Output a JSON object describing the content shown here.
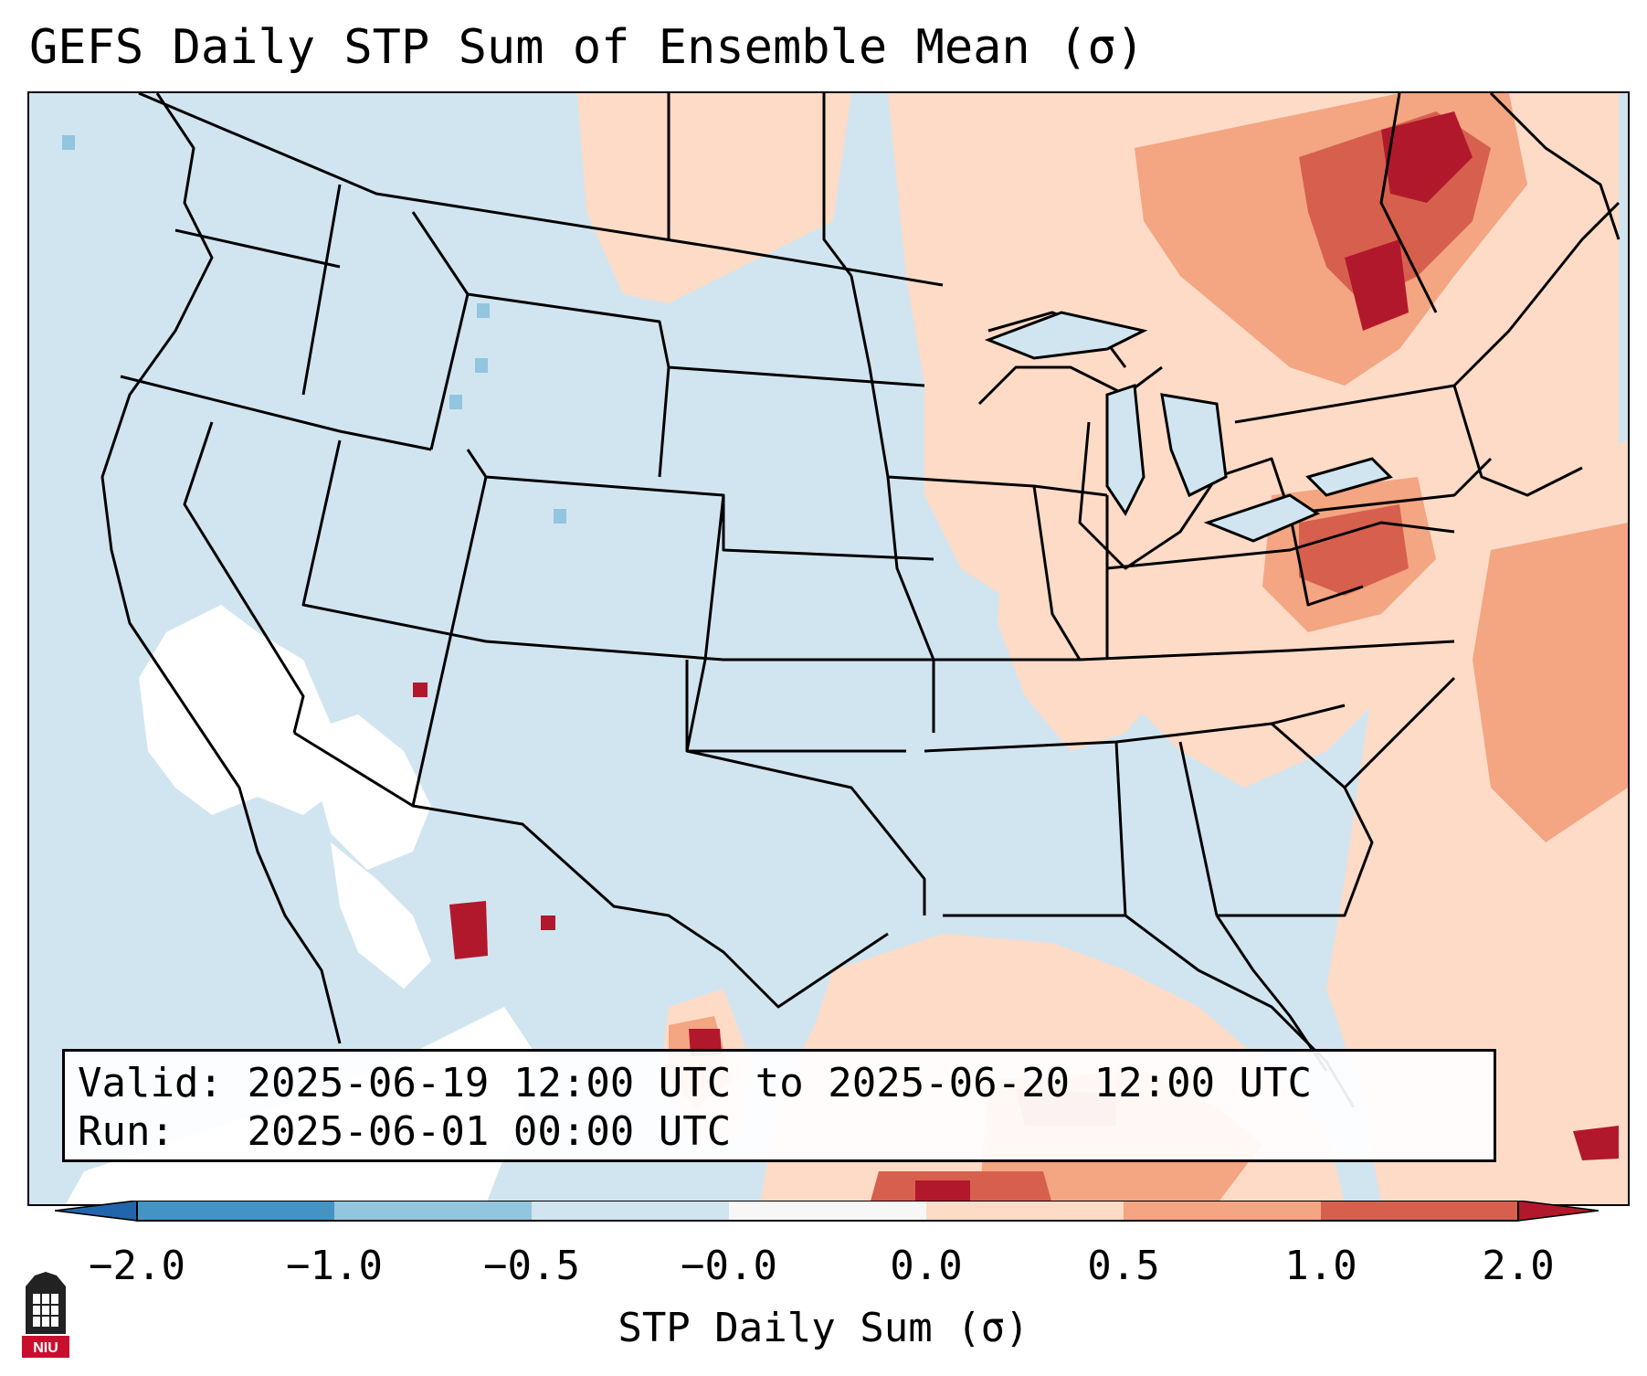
{
  "title": "GEFS Daily STP Sum of Ensemble Mean (σ)",
  "info": {
    "valid_label": "Valid:",
    "valid_value": "2025-06-19 12:00 UTC to 2025-06-20 12:00 UTC",
    "run_label": "Run:",
    "run_value": "2025-06-01 00:00 UTC"
  },
  "colorbar": {
    "label": "STP Daily Sum (σ)",
    "ticks": [
      "−2.0",
      "−1.0",
      "−0.5",
      "−0.0",
      "0.0",
      "0.5",
      "1.0",
      "2.0"
    ],
    "colors": [
      "#2166ac",
      "#4393c3",
      "#92c5de",
      "#d1e5f0",
      "#f7f7f7",
      "#fddbc7",
      "#f4a582",
      "#d6604d",
      "#b2182b"
    ]
  },
  "legend_colors": {
    "below_lowest": "#2166ac",
    "level_neg_1_to_neg_0_5": "#92c5de",
    "level_neg_0_5_to_0": "#d1e5f0",
    "level_0": "#ffffff",
    "level_0_to_0_5": "#fddbc7",
    "level_0_5_to_1": "#f4a582",
    "level_1_to_2": "#d6604d",
    "above_2": "#b2182b"
  },
  "logo": {
    "text": "NIU",
    "color": "#c8102e"
  }
}
